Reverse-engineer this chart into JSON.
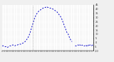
{
  "background_color": "#f0f0f0",
  "plot_bg_color": "#ffffff",
  "line_color": "#0000cc",
  "grid_color": "#999999",
  "ylim": [
    -10,
    45
  ],
  "xlim": [
    0,
    1439
  ],
  "y_ticks": [
    45,
    40,
    35,
    30,
    25,
    20,
    15,
    10,
    5,
    0,
    -5,
    -10
  ],
  "y_tick_labels": [
    "45",
    "40",
    "35",
    "30",
    "25",
    "20",
    "15",
    "10",
    "5",
    "0",
    "-5",
    "-10"
  ],
  "segment1_x": [
    0,
    20,
    40,
    60,
    80,
    100,
    120,
    140,
    160,
    180,
    200,
    220,
    240,
    260,
    280,
    300,
    320,
    340,
    360,
    380,
    400,
    420,
    440,
    460,
    480,
    500,
    520,
    540,
    560,
    580,
    600,
    620,
    640,
    660,
    680,
    700,
    720,
    740,
    760,
    780,
    800,
    820,
    840,
    860,
    880,
    900,
    920,
    940,
    960,
    980,
    1000,
    1020,
    1040,
    1060,
    1080,
    1090,
    1100
  ],
  "segment1_y": [
    -4,
    -4,
    -5,
    -5,
    -6,
    -5,
    -4,
    -4,
    -3,
    -3,
    -4,
    -3,
    -3,
    -2,
    -2,
    -2,
    -1,
    0,
    1,
    3,
    5,
    8,
    12,
    17,
    22,
    27,
    31,
    34,
    36,
    38,
    39,
    40,
    41,
    42,
    42,
    43,
    42,
    42,
    41,
    41,
    40,
    39,
    38,
    37,
    35,
    33,
    31,
    28,
    24,
    20,
    16,
    12,
    10,
    6,
    3,
    2,
    1
  ],
  "segment2_x": [
    1150,
    1160,
    1170,
    1180,
    1190,
    1200,
    1210,
    1220,
    1230,
    1240,
    1250,
    1260,
    1270,
    1280,
    1290,
    1300,
    1310,
    1320,
    1330,
    1340,
    1350,
    1360,
    1370,
    1380,
    1390,
    1400,
    1410,
    1420,
    1430,
    1439
  ],
  "segment2_y": [
    -4,
    -4,
    -4,
    -3,
    -3,
    -3,
    -4,
    -3,
    -3,
    -4,
    -4,
    -3,
    -4,
    -4,
    -4,
    -4,
    -4,
    -3,
    -4,
    -5,
    -4,
    -3,
    -4,
    -3,
    -3,
    -4,
    -4,
    -3,
    -4,
    -3
  ],
  "n_xticks": 48,
  "figsize": [
    1.6,
    0.87
  ],
  "dpi": 100
}
